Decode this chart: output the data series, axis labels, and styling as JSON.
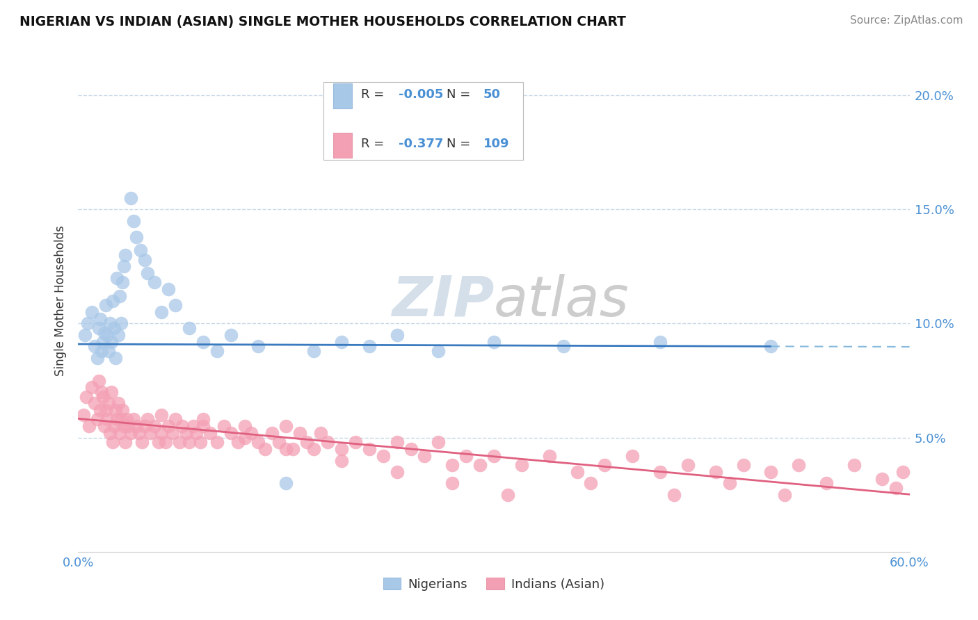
{
  "title": "NIGERIAN VS INDIAN (ASIAN) SINGLE MOTHER HOUSEHOLDS CORRELATION CHART",
  "source": "Source: ZipAtlas.com",
  "ylabel": "Single Mother Households",
  "nigerian_R": -0.005,
  "nigerian_N": 50,
  "indian_R": -0.377,
  "indian_N": 109,
  "nigerian_color": "#a8c8e8",
  "indian_color": "#f4a0b4",
  "nigerian_line_color": "#3a7abf",
  "indian_line_color": "#e06080",
  "nigerian_line_dashed_color": "#88bbdd",
  "background_color": "#ffffff",
  "grid_color": "#c8d8e8",
  "text_color_blue": "#4a90d4",
  "text_color_dark": "#333333",
  "xlim": [
    0.0,
    0.6
  ],
  "ylim": [
    0.0,
    0.22
  ],
  "nigerian_x": [
    0.005,
    0.007,
    0.01,
    0.012,
    0.014,
    0.015,
    0.016,
    0.017,
    0.018,
    0.019,
    0.02,
    0.021,
    0.022,
    0.023,
    0.024,
    0.025,
    0.026,
    0.027,
    0.028,
    0.029,
    0.03,
    0.031,
    0.032,
    0.033,
    0.034,
    0.038,
    0.04,
    0.042,
    0.045,
    0.048,
    0.05,
    0.055,
    0.06,
    0.065,
    0.07,
    0.08,
    0.09,
    0.1,
    0.11,
    0.13,
    0.15,
    0.17,
    0.19,
    0.21,
    0.23,
    0.26,
    0.3,
    0.35,
    0.42,
    0.5
  ],
  "nigerian_y": [
    0.095,
    0.1,
    0.105,
    0.09,
    0.085,
    0.098,
    0.102,
    0.088,
    0.092,
    0.096,
    0.108,
    0.095,
    0.088,
    0.1,
    0.092,
    0.11,
    0.098,
    0.085,
    0.12,
    0.095,
    0.112,
    0.1,
    0.118,
    0.125,
    0.13,
    0.155,
    0.145,
    0.138,
    0.132,
    0.128,
    0.122,
    0.118,
    0.105,
    0.115,
    0.108,
    0.098,
    0.092,
    0.088,
    0.095,
    0.09,
    0.03,
    0.088,
    0.092,
    0.09,
    0.095,
    0.088,
    0.092,
    0.09,
    0.092,
    0.09
  ],
  "indian_x": [
    0.004,
    0.006,
    0.008,
    0.01,
    0.012,
    0.014,
    0.015,
    0.016,
    0.017,
    0.018,
    0.019,
    0.02,
    0.021,
    0.022,
    0.023,
    0.024,
    0.025,
    0.026,
    0.027,
    0.028,
    0.029,
    0.03,
    0.031,
    0.032,
    0.033,
    0.034,
    0.035,
    0.036,
    0.038,
    0.04,
    0.042,
    0.044,
    0.046,
    0.048,
    0.05,
    0.052,
    0.055,
    0.058,
    0.06,
    0.063,
    0.065,
    0.068,
    0.07,
    0.073,
    0.075,
    0.078,
    0.08,
    0.083,
    0.085,
    0.088,
    0.09,
    0.095,
    0.1,
    0.105,
    0.11,
    0.115,
    0.12,
    0.125,
    0.13,
    0.135,
    0.14,
    0.145,
    0.15,
    0.155,
    0.16,
    0.165,
    0.17,
    0.175,
    0.18,
    0.19,
    0.2,
    0.21,
    0.22,
    0.23,
    0.24,
    0.25,
    0.26,
    0.27,
    0.28,
    0.29,
    0.3,
    0.32,
    0.34,
    0.36,
    0.38,
    0.4,
    0.42,
    0.44,
    0.46,
    0.48,
    0.5,
    0.52,
    0.54,
    0.56,
    0.58,
    0.59,
    0.595,
    0.43,
    0.47,
    0.51,
    0.37,
    0.31,
    0.27,
    0.23,
    0.19,
    0.15,
    0.12,
    0.09,
    0.06
  ],
  "indian_y": [
    0.06,
    0.068,
    0.055,
    0.072,
    0.065,
    0.058,
    0.075,
    0.062,
    0.07,
    0.068,
    0.055,
    0.062,
    0.058,
    0.065,
    0.052,
    0.07,
    0.048,
    0.055,
    0.062,
    0.058,
    0.065,
    0.052,
    0.058,
    0.062,
    0.055,
    0.048,
    0.058,
    0.055,
    0.052,
    0.058,
    0.055,
    0.052,
    0.048,
    0.055,
    0.058,
    0.052,
    0.055,
    0.048,
    0.052,
    0.048,
    0.055,
    0.052,
    0.058,
    0.048,
    0.055,
    0.052,
    0.048,
    0.055,
    0.052,
    0.048,
    0.058,
    0.052,
    0.048,
    0.055,
    0.052,
    0.048,
    0.055,
    0.052,
    0.048,
    0.045,
    0.052,
    0.048,
    0.055,
    0.045,
    0.052,
    0.048,
    0.045,
    0.052,
    0.048,
    0.045,
    0.048,
    0.045,
    0.042,
    0.048,
    0.045,
    0.042,
    0.048,
    0.038,
    0.042,
    0.038,
    0.042,
    0.038,
    0.042,
    0.035,
    0.038,
    0.042,
    0.035,
    0.038,
    0.035,
    0.038,
    0.035,
    0.038,
    0.03,
    0.038,
    0.032,
    0.028,
    0.035,
    0.025,
    0.03,
    0.025,
    0.03,
    0.025,
    0.03,
    0.035,
    0.04,
    0.045,
    0.05,
    0.055,
    0.06
  ]
}
